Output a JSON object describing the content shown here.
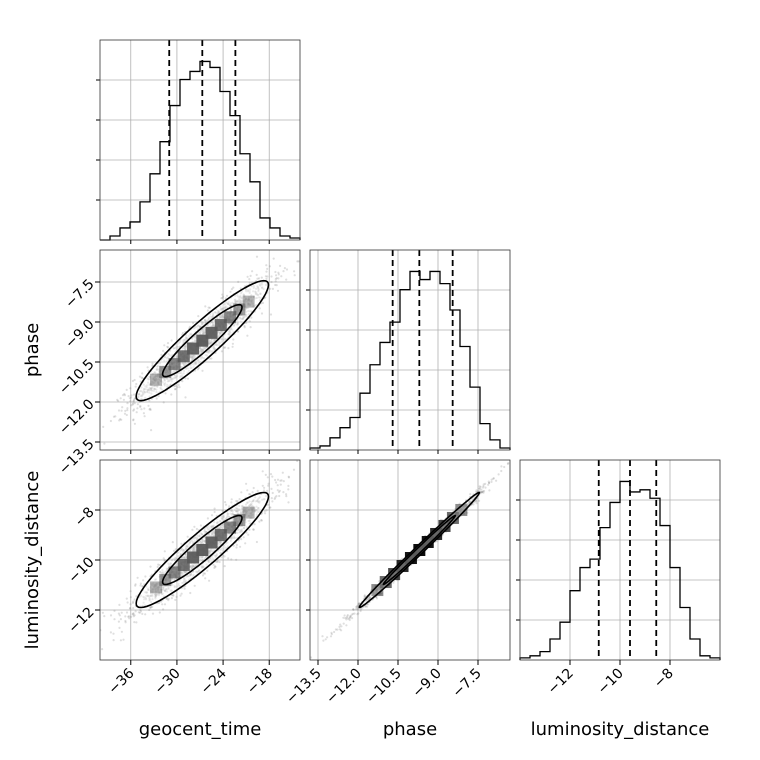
{
  "chart_data": {
    "type": "corner",
    "parameters": [
      "geocent_time",
      "phase",
      "luminosity_distance"
    ],
    "axis_labels": {
      "x": [
        "geocent_time",
        "phase",
        "luminosity_distance"
      ],
      "y": [
        "phase",
        "luminosity_distance"
      ]
    },
    "ranges": {
      "geocent_time": [
        -40,
        -14
      ],
      "phase": [
        -13.8,
        -6.3
      ],
      "luminosity_distance": [
        -14,
        -6
      ]
    },
    "ticks": {
      "geocent_time": [
        -36,
        -30,
        -24,
        -18
      ],
      "phase": [
        -13.5,
        -12.0,
        -10.5,
        -9.0,
        -7.5
      ],
      "phase_y": [
        -7.5,
        -9.0,
        -10.5,
        -12.0,
        -13.5
      ],
      "luminosity_distance": [
        -12,
        -10,
        -8
      ]
    },
    "tick_labels": {
      "geocent_time": [
        "−36",
        "−30",
        "−24",
        "−18"
      ],
      "phase_x": [
        "−13.5",
        "−12.0",
        "−10.5",
        "−9.0",
        "−7.5"
      ],
      "phase_y": [
        "−7.5",
        "−9.0",
        "−10.5",
        "−12.0",
        "−13.5"
      ],
      "luminosity_distance": [
        "−12",
        "−10",
        "−8"
      ]
    },
    "quantiles": {
      "geocent_time": [
        -31.0,
        -26.7,
        -22.4
      ],
      "phase": [
        -10.7,
        -9.7,
        -8.45
      ],
      "luminosity_distance": [
        -10.85,
        -9.6,
        -8.55
      ]
    },
    "histograms": {
      "geocent_time": {
        "edges": [
          -40,
          -38.7,
          -37.4,
          -36.1,
          -34.8,
          -33.5,
          -32.2,
          -30.9,
          -29.6,
          -28.3,
          -27.0,
          -25.7,
          -24.4,
          -23.1,
          -21.8,
          -20.5,
          -19.2,
          -17.9,
          -16.6,
          -15.3,
          -14
        ],
        "counts": [
          0,
          2,
          6,
          9,
          19,
          33,
          49,
          67,
          80,
          84,
          89,
          86,
          74,
          62,
          43,
          29,
          11,
          6,
          2,
          1
        ]
      },
      "phase": {
        "edges": [
          -13.8,
          -13.425,
          -13.05,
          -12.675,
          -12.3,
          -11.925,
          -11.55,
          -11.175,
          -10.8,
          -10.425,
          -10.05,
          -9.675,
          -9.3,
          -8.925,
          -8.55,
          -8.175,
          -7.8,
          -7.425,
          -7.05,
          -6.675,
          -6.3
        ],
        "counts": [
          1,
          2,
          6,
          11,
          16,
          28,
          42,
          53,
          63,
          79,
          88,
          84,
          88,
          82,
          69,
          51,
          31,
          13,
          5,
          1
        ]
      },
      "luminosity_distance": {
        "edges": [
          -14,
          -13.6,
          -13.2,
          -12.8,
          -12.4,
          -12.0,
          -11.6,
          -11.2,
          -10.8,
          -10.4,
          -10.0,
          -9.6,
          -9.2,
          -8.8,
          -8.4,
          -8.0,
          -7.6,
          -7.2,
          -6.8,
          -6.4,
          -6
        ],
        "counts": [
          1,
          2,
          4,
          10,
          18,
          33,
          44,
          48,
          63,
          75,
          85,
          80,
          81,
          77,
          64,
          44,
          25,
          10,
          2,
          1
        ]
      }
    },
    "scatter": {
      "correlations": [
        {
          "x": "geocent_time",
          "y": "phase",
          "rho": 0.93
        },
        {
          "x": "geocent_time",
          "y": "luminosity_distance",
          "rho": 0.93
        },
        {
          "x": "phase",
          "y": "luminosity_distance",
          "rho": 0.995
        }
      ],
      "contour_levels": [
        "1-sigma",
        "2-sigma"
      ]
    },
    "grid": true,
    "colors": {
      "line": "#000000",
      "points": "#7f7f7f",
      "grid": "#b0b0b0"
    }
  }
}
